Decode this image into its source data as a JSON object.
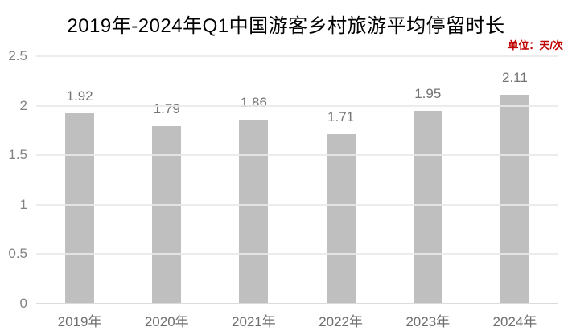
{
  "title": "2019年-2024年Q1中国游客乡村旅游平均停留时长",
  "unit_label": "单位：天/次",
  "chart_data": {
    "type": "bar",
    "title": "2019年-2024年Q1中国游客乡村旅游平均停留时长",
    "annotation": "单位：天/次",
    "categories": [
      "2019年",
      "2020年",
      "2021年",
      "2022年",
      "2023年",
      "2024年"
    ],
    "values": [
      1.92,
      1.79,
      1.86,
      1.71,
      1.95,
      2.11
    ],
    "value_labels": [
      "1.92",
      "1.79",
      "1.86",
      "1.71",
      "1.95",
      "2.11"
    ],
    "xlabel": "",
    "ylabel": "",
    "ylim": [
      0,
      2.5
    ],
    "y_ticks": [
      0,
      0.5,
      1,
      1.5,
      2,
      2.5
    ],
    "y_tick_labels": [
      "0",
      "0.5",
      "1",
      "1.5",
      "2",
      "2.5"
    ],
    "grid": true,
    "legend": false,
    "data_labels": "outside-end"
  },
  "colors": {
    "background": "#FFFFFF",
    "bar": "#BFBFBF",
    "gridline": "#E9E9E9",
    "axis_line": "#DBDBDB",
    "y_tick_label": "#828282",
    "x_tick_label": "#6F6F6F",
    "data_label": "#747474",
    "title": "#000000",
    "unit_label": "#C00000"
  }
}
